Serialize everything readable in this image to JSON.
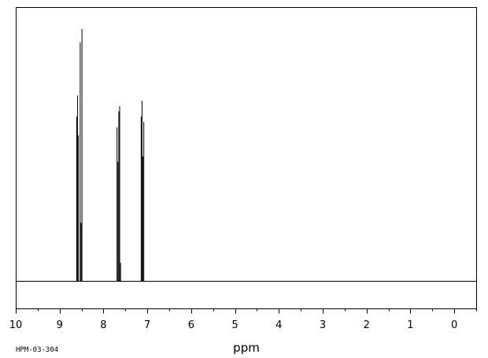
{
  "chart_data": {
    "type": "line",
    "title": "",
    "xlabel": "ppm",
    "ylabel": "",
    "xlim": [
      10,
      -0.5
    ],
    "x_reversed": true,
    "grid": false,
    "legend": "none",
    "x_major_ticks": [
      10,
      9,
      8,
      7,
      6,
      5,
      4,
      3,
      2,
      1,
      0
    ],
    "x_minor_step": 0.5,
    "ylim": [
      0,
      1
    ],
    "series": [
      {
        "peaks": [
          {
            "ppm": 8.61,
            "height": 0.62
          },
          {
            "ppm": 8.59,
            "height": 0.7
          },
          {
            "ppm": 8.57,
            "height": 0.55
          },
          {
            "ppm": 8.53,
            "height": 0.9
          },
          {
            "ppm": 8.51,
            "height": 0.22
          },
          {
            "ppm": 8.49,
            "height": 0.95
          },
          {
            "ppm": 7.69,
            "height": 0.58
          },
          {
            "ppm": 7.67,
            "height": 0.45
          },
          {
            "ppm": 7.65,
            "height": 0.64
          },
          {
            "ppm": 7.63,
            "height": 0.66
          },
          {
            "ppm": 7.61,
            "height": 0.07
          },
          {
            "ppm": 7.14,
            "height": 0.62
          },
          {
            "ppm": 7.12,
            "height": 0.68
          },
          {
            "ppm": 7.1,
            "height": 0.47
          },
          {
            "ppm": 7.08,
            "height": 0.6
          }
        ]
      }
    ]
  },
  "sample_id": "HPM-03-304",
  "colors": {
    "line": "#000000",
    "background": "#ffffff"
  }
}
